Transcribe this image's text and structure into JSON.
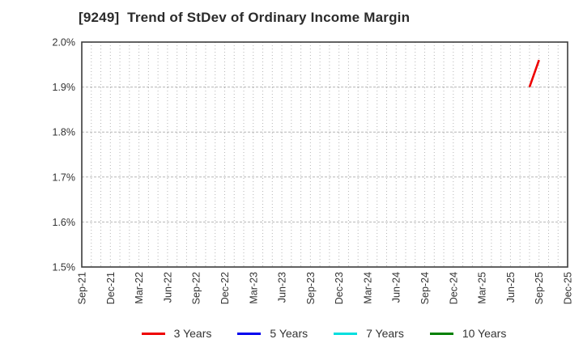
{
  "chart_data": {
    "type": "line",
    "title": "[9249]  Trend of StDev of Ordinary Income Margin",
    "grid": true,
    "legend_position": "bottom",
    "y_axis": {
      "min": 1.5,
      "max": 2.0,
      "format": "percent",
      "ticks": [
        {
          "label": "2.0%",
          "value": 2.0
        },
        {
          "label": "1.9%",
          "value": 1.9
        },
        {
          "label": "1.8%",
          "value": 1.8
        },
        {
          "label": "1.7%",
          "value": 1.7
        },
        {
          "label": "1.6%",
          "value": 1.6
        },
        {
          "label": "1.5%",
          "value": 1.5
        }
      ]
    },
    "x_axis": {
      "start": "Sep-21",
      "end": "Dec-25",
      "grid_interval_months": 1,
      "tick_labels": [
        "Sep-21",
        "Dec-21",
        "Mar-22",
        "Jun-22",
        "Sep-22",
        "Dec-22",
        "Mar-23",
        "Jun-23",
        "Sep-23",
        "Dec-23",
        "Mar-24",
        "Jun-24",
        "Sep-24",
        "Dec-24",
        "Mar-25",
        "Jun-25",
        "Sep-25",
        "Dec-25"
      ]
    },
    "series": [
      {
        "name": "3 Years",
        "color": "#ee0000",
        "points": [
          {
            "x": "Aug-25",
            "y": 1.9
          },
          {
            "x": "Sep-25",
            "y": 1.96
          }
        ]
      },
      {
        "name": "5 Years",
        "color": "#0000ee",
        "points": []
      },
      {
        "name": "7 Years",
        "color": "#00dede",
        "points": []
      },
      {
        "name": "10 Years",
        "color": "#008000",
        "points": []
      }
    ],
    "style_colors": {
      "border": "#3c3c3c",
      "gridline": "#b5b5b5",
      "text": "#333333"
    }
  }
}
